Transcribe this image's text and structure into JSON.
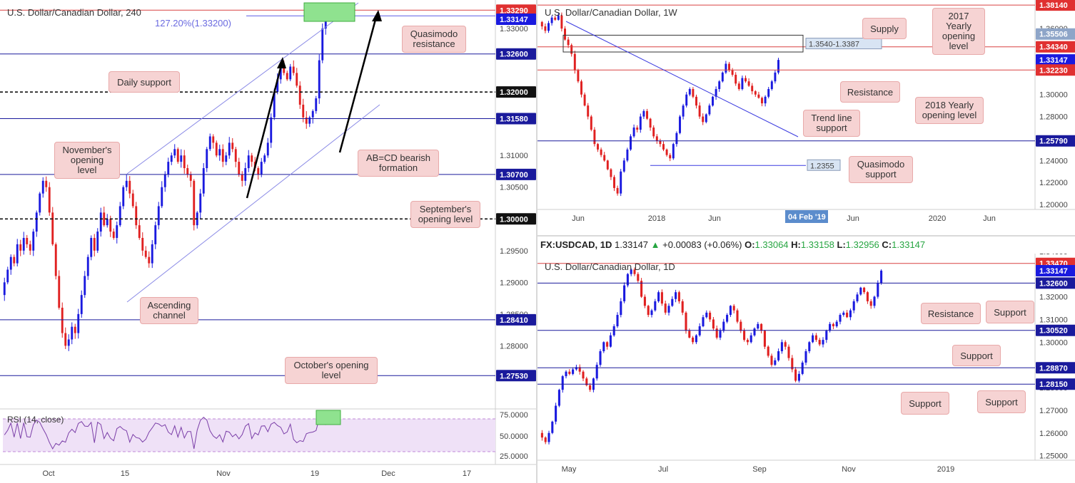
{
  "panels": {
    "h4": {
      "title": "U.S. Dollar/Canadian Dollar, 240",
      "fib_label": "127.20%(1.33200)",
      "rsi_label": "RSI (14, close)",
      "colors": {
        "up": "#1a1adf",
        "down": "#e02020",
        "level": "#1a1a9c",
        "red_level": "#d94040",
        "channel": "#8a8ae6"
      }
    },
    "weekly": {
      "title": "U.S. Dollar/Canadian Dollar, 1W"
    },
    "daily": {
      "title": "U.S. Dollar/Canadian Dollar, 1D"
    }
  },
  "ohlc": {
    "symbol": "FX:USDCAD, 1D",
    "last": "1.33147",
    "change": "+0.00083 (+0.06%)",
    "o_label": "O:",
    "o": "1.33064",
    "h_label": "H:",
    "h": "1.33158",
    "l_label": "L:",
    "l": "1.32956",
    "c_label": "C:",
    "c": "1.33147"
  },
  "annotations": {
    "h4": [
      {
        "text": "Quasimodo resistance"
      },
      {
        "text": "Daily support"
      },
      {
        "text": "November's opening level"
      },
      {
        "text": "AB=CD bearish formation"
      },
      {
        "text": "September's opening level"
      },
      {
        "text": "Ascending channel"
      },
      {
        "text": "October's opening level"
      }
    ],
    "weekly": [
      {
        "text": "Supply"
      },
      {
        "text": "2017 Yearly opening level"
      },
      {
        "text": "Resistance"
      },
      {
        "text": "2018 Yearly opening level"
      },
      {
        "text": "Trend line support"
      },
      {
        "text": "Quasimodo support"
      }
    ],
    "daily": [
      {
        "text": "Resistance"
      },
      {
        "text": "Support"
      },
      {
        "text": "Support"
      },
      {
        "text": "Support"
      },
      {
        "text": "Support"
      }
    ],
    "weekly_boxes": {
      "supply": "1.3540-1.3387",
      "qm": "1.2355",
      "date": "04 Feb '19"
    }
  },
  "chart_data": [
    {
      "type": "candlestick",
      "title": "U.S. Dollar/Canadian Dollar, 240",
      "ylim": [
        1.2705,
        1.3345
      ],
      "y_ticks": [
        "1.33000",
        "1.31000",
        "1.30500",
        "1.29500",
        "1.29000",
        "1.28500",
        "1.28000"
      ],
      "x_ticks": [
        "Oct",
        "15",
        "Nov",
        "19",
        "Dec",
        "17"
      ],
      "levels": [
        {
          "value": 1.3329,
          "label": "1.33290",
          "style": "red"
        },
        {
          "value": 1.33147,
          "label": "1.33147",
          "style": "current"
        },
        {
          "value": 1.332,
          "label": "127.20%(1.33200)",
          "style": "fib"
        },
        {
          "value": 1.326,
          "label": "1.32600",
          "style": "blue"
        },
        {
          "value": 1.32,
          "label": "1.32000",
          "style": "dashed"
        },
        {
          "value": 1.3158,
          "label": "1.31580",
          "style": "blue"
        },
        {
          "value": 1.307,
          "label": "1.30700",
          "style": "blue"
        },
        {
          "value": 1.3,
          "label": "1.30000",
          "style": "dashed"
        },
        {
          "value": 1.2841,
          "label": "1.28410",
          "style": "blue"
        },
        {
          "value": 1.2753,
          "label": "1.27530",
          "style": "blue"
        }
      ],
      "closes": [
        1.29,
        1.292,
        1.294,
        1.293,
        1.296,
        1.295,
        1.297,
        1.296,
        1.295,
        1.298,
        1.301,
        1.304,
        1.306,
        1.305,
        1.301,
        1.296,
        1.291,
        1.286,
        1.282,
        1.28,
        1.281,
        1.283,
        1.282,
        1.285,
        1.288,
        1.291,
        1.294,
        1.297,
        1.295,
        1.298,
        1.301,
        1.299,
        1.3,
        1.298,
        1.297,
        1.299,
        1.302,
        1.305,
        1.306,
        1.304,
        1.302,
        1.299,
        1.297,
        1.295,
        1.294,
        1.293,
        1.296,
        1.299,
        1.302,
        1.305,
        1.307,
        1.309,
        1.31,
        1.311,
        1.309,
        1.31,
        1.308,
        1.307,
        1.306,
        1.299,
        1.301,
        1.304,
        1.308,
        1.311,
        1.313,
        1.312,
        1.31,
        1.311,
        1.309,
        1.31,
        1.312,
        1.311,
        1.309,
        1.307,
        1.306,
        1.308,
        1.31,
        1.309,
        1.308,
        1.307,
        1.309,
        1.31,
        1.312,
        1.316,
        1.32,
        1.322,
        1.324,
        1.323,
        1.322,
        1.324,
        1.323,
        1.321,
        1.318,
        1.316,
        1.315,
        1.316,
        1.317,
        1.319,
        1.325,
        1.33,
        1.3315
      ],
      "rsi": {
        "label": "RSI (14, close)",
        "y_ticks": [
          "75.0000",
          "50.0000",
          "25.0000"
        ]
      }
    },
    {
      "type": "candlestick",
      "title": "U.S. Dollar/Canadian Dollar, 1W",
      "ylim": [
        1.1955,
        1.386
      ],
      "y_ticks": [
        "1.36000",
        "1.32000",
        "1.30000",
        "1.28000",
        "1.24000",
        "1.22000",
        "1.20000"
      ],
      "x_ticks": [
        "Jun",
        "2018",
        "Jun",
        "Jun",
        "2020",
        "Jun"
      ],
      "levels": [
        {
          "value": 1.3814,
          "label": "1.38140",
          "style": "red"
        },
        {
          "value": 1.35506,
          "label": "1.35506",
          "style": "grey"
        },
        {
          "value": 1.3434,
          "label": "1.34340",
          "style": "red"
        },
        {
          "value": 1.33147,
          "label": "1.33147",
          "style": "current"
        },
        {
          "value": 1.3223,
          "label": "1.32230",
          "style": "red"
        },
        {
          "value": 1.2579,
          "label": "1.25790",
          "style": "blue"
        }
      ],
      "supply_zone": [
        1.3387,
        1.354
      ],
      "closes": [
        1.362,
        1.358,
        1.365,
        1.37,
        1.368,
        1.372,
        1.36,
        1.35,
        1.345,
        1.337,
        1.322,
        1.312,
        1.3,
        1.29,
        1.28,
        1.268,
        1.255,
        1.25,
        1.245,
        1.24,
        1.232,
        1.225,
        1.215,
        1.21,
        1.23,
        1.24,
        1.25,
        1.262,
        1.27,
        1.268,
        1.28,
        1.285,
        1.278,
        1.27,
        1.262,
        1.258,
        1.255,
        1.25,
        1.245,
        1.242,
        1.255,
        1.265,
        1.28,
        1.29,
        1.3,
        1.305,
        1.298,
        1.29,
        1.28,
        1.275,
        1.282,
        1.29,
        1.298,
        1.305,
        1.312,
        1.32,
        1.328,
        1.322,
        1.318,
        1.31,
        1.305,
        1.315,
        1.312,
        1.308,
        1.303,
        1.3,
        1.297,
        1.292,
        1.298,
        1.305,
        1.312,
        1.32,
        1.3315
      ]
    },
    {
      "type": "candlestick",
      "title": "U.S. Dollar/Canadian Dollar, 1D",
      "ylim": [
        1.248,
        1.339
      ],
      "y_ticks": [
        "1.34000",
        "1.32000",
        "1.31000",
        "1.30000",
        "1.28000",
        "1.27000",
        "1.26000",
        "1.25000"
      ],
      "x_ticks": [
        "May",
        "Jul",
        "Sep",
        "Nov",
        "2019"
      ],
      "levels": [
        {
          "value": 1.3347,
          "label": "1.33470",
          "style": "red"
        },
        {
          "value": 1.33147,
          "label": "1.33147",
          "style": "current"
        },
        {
          "value": 1.326,
          "label": "1.32600",
          "style": "blue"
        },
        {
          "value": 1.3052,
          "label": "1.30520",
          "style": "blue"
        },
        {
          "value": 1.2887,
          "label": "1.28870",
          "style": "blue"
        },
        {
          "value": 1.2815,
          "label": "1.28150",
          "style": "blue"
        }
      ],
      "closes": [
        1.258,
        1.256,
        1.26,
        1.265,
        1.272,
        1.279,
        1.285,
        1.287,
        1.286,
        1.288,
        1.289,
        1.287,
        1.284,
        1.281,
        1.279,
        1.284,
        1.29,
        1.296,
        1.3,
        1.298,
        1.303,
        1.307,
        1.312,
        1.318,
        1.325,
        1.33,
        1.332,
        1.33,
        1.327,
        1.32,
        1.316,
        1.312,
        1.314,
        1.318,
        1.322,
        1.317,
        1.313,
        1.316,
        1.319,
        1.322,
        1.318,
        1.313,
        1.305,
        1.302,
        1.3,
        1.303,
        1.307,
        1.311,
        1.313,
        1.31,
        1.306,
        1.302,
        1.305,
        1.309,
        1.312,
        1.316,
        1.314,
        1.309,
        1.305,
        1.301,
        1.3,
        1.303,
        1.306,
        1.308,
        1.305,
        1.298,
        1.294,
        1.29,
        1.292,
        1.296,
        1.3,
        1.298,
        1.293,
        1.288,
        1.283,
        1.286,
        1.291,
        1.296,
        1.3,
        1.303,
        1.301,
        1.299,
        1.301,
        1.305,
        1.308,
        1.307,
        1.309,
        1.312,
        1.313,
        1.311,
        1.314,
        1.318,
        1.321,
        1.324,
        1.322,
        1.318,
        1.316,
        1.32,
        1.326,
        1.3315
      ]
    }
  ]
}
